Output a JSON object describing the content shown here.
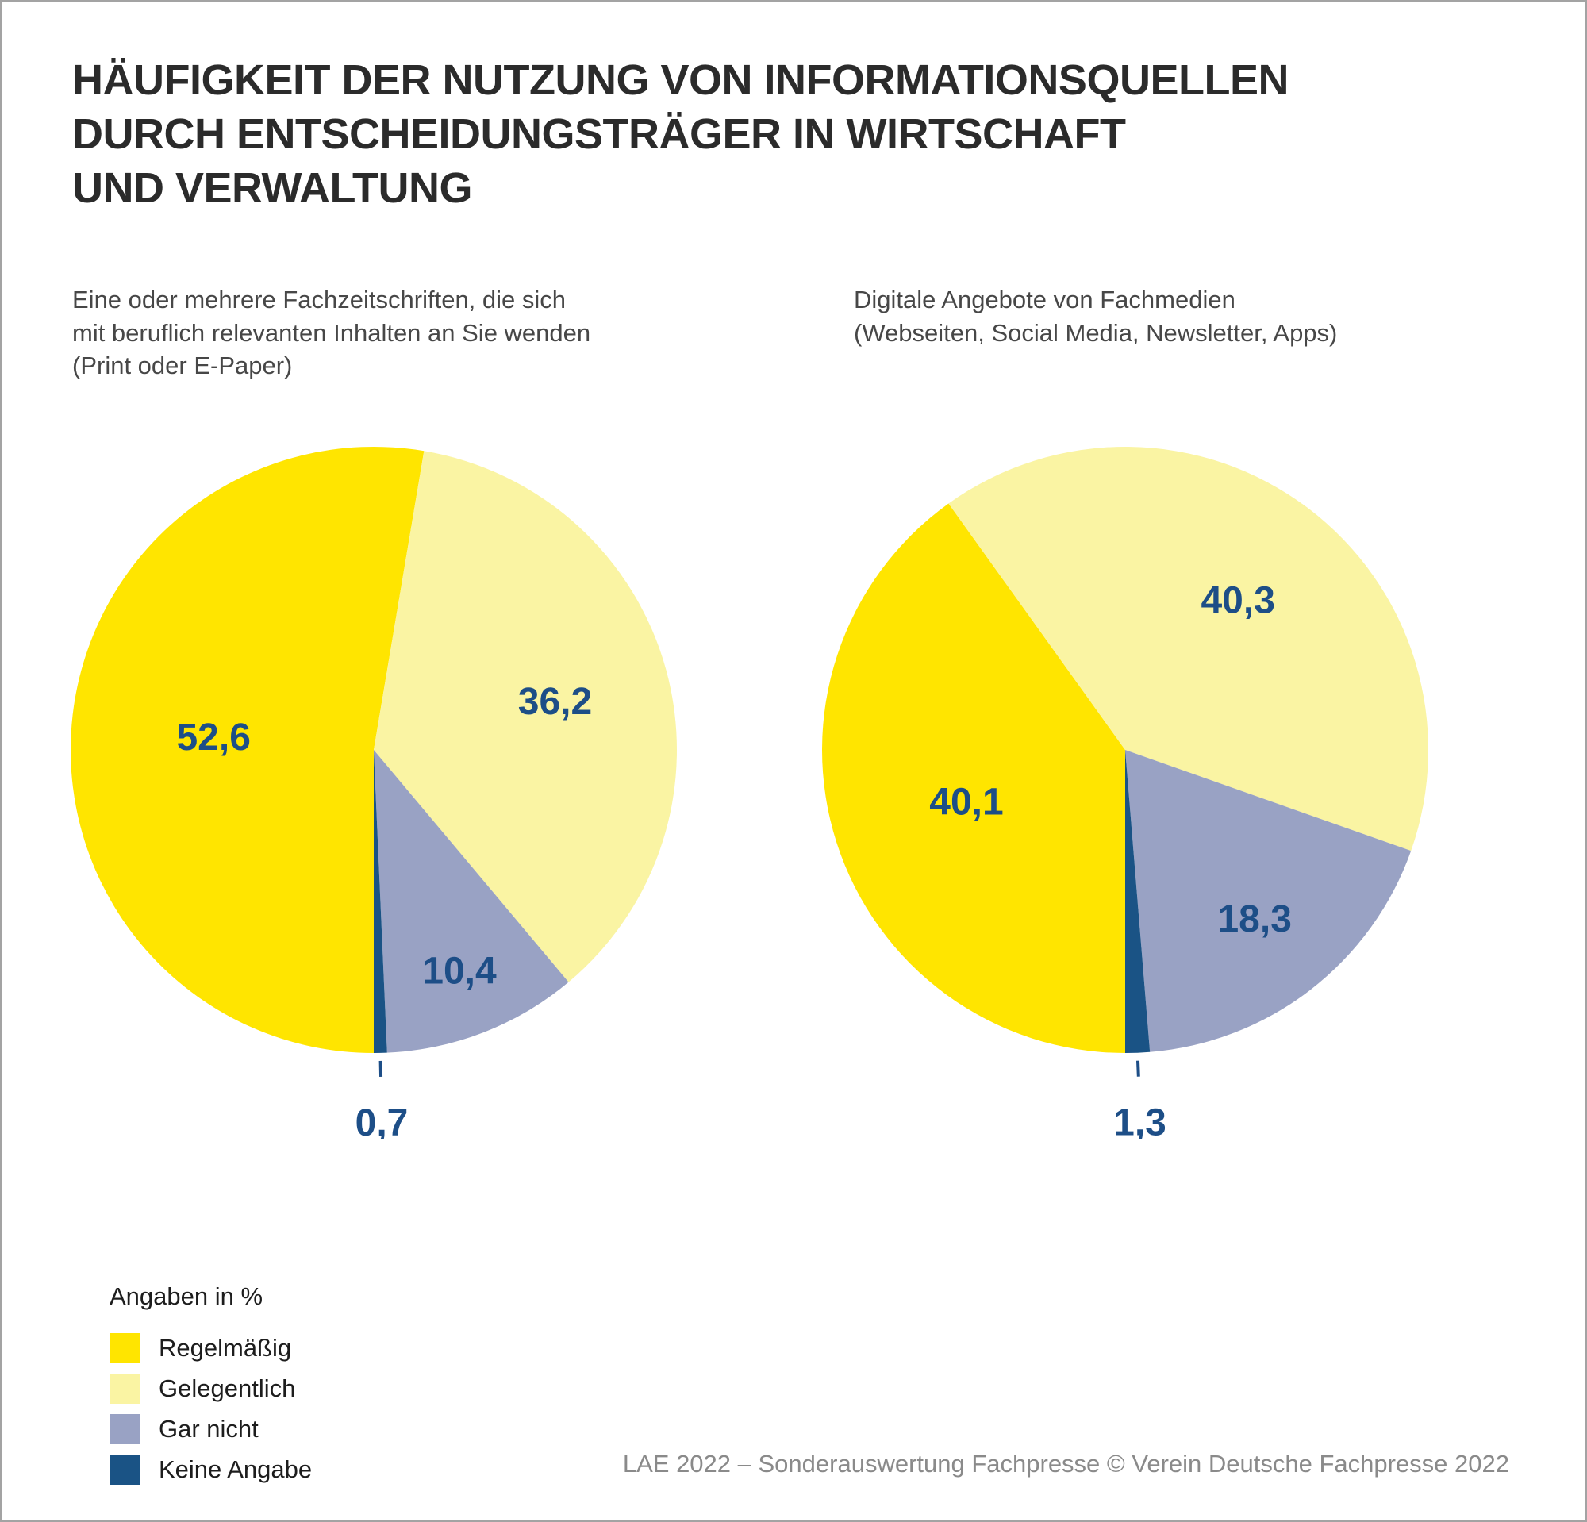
{
  "page": {
    "title_lines": [
      "HÄUFIGKEIT DER NUTZUNG VON INFORMATIONSQUELLEN",
      "DURCH ENTSCHEIDUNGSTRÄGER IN WIRTSCHAFT",
      "UND VERWALTUNG"
    ],
    "footer": "LAE 2022 – Sonderauswertung Fachpresse © Verein Deutsche Fachpresse 2022"
  },
  "chart_style": {
    "value_label_color": "#1d4e87"
  },
  "legend": {
    "heading": "Angaben in %",
    "items": [
      {
        "label": "Regelmäßig",
        "color": "#ffe500"
      },
      {
        "label": "Gelegentlich",
        "color": "#faf4a3"
      },
      {
        "label": "Gar nicht",
        "color": "#99a2c4"
      },
      {
        "label": "Keine Angabe",
        "color": "#1a5385"
      }
    ]
  },
  "chart_data": [
    {
      "type": "pie",
      "title": "Eine oder mehrere Fachzeitschriften, die sich mit beruflich relevanten Inhalten an Sie wenden (Print oder E-Paper)",
      "title_lines": [
        "Eine oder mehrere Fachzeitschriften, die sich",
        "mit beruflich relevanten Inhalten an Sie wenden",
        "(Print oder E-Paper)"
      ],
      "categories": [
        "Regelmäßig",
        "Gelegentlich",
        "Gar nicht",
        "Keine Angabe"
      ],
      "values": [
        52.6,
        36.2,
        10.4,
        0.7
      ],
      "labels": [
        "52,6",
        "36,2",
        "10,4",
        "0,7"
      ],
      "colors": [
        "#ffe500",
        "#faf4a3",
        "#99a2c4",
        "#1a5385"
      ],
      "unit": "%",
      "start_angle_deg": 180,
      "direction": "clockwise",
      "label_radius": [
        0.53,
        0.62,
        0.78,
        1.2
      ]
    },
    {
      "type": "pie",
      "title": "Digitale Angebote von Fachmedien (Webseiten, Social Media, Newsletter, Apps)",
      "title_lines": [
        "Digitale Angebote von Fachmedien",
        "(Webseiten, Social Media, Newsletter, Apps)"
      ],
      "categories": [
        "Regelmäßig",
        "Gelegentlich",
        "Gar nicht",
        "Keine Angabe"
      ],
      "values": [
        40.1,
        40.3,
        18.3,
        1.3
      ],
      "labels": [
        "40,1",
        "40,3",
        "18,3",
        "1,3"
      ],
      "colors": [
        "#ffe500",
        "#faf4a3",
        "#99a2c4",
        "#1a5385"
      ],
      "unit": "%",
      "start_angle_deg": 180,
      "direction": "clockwise",
      "label_radius": [
        0.55,
        0.62,
        0.7,
        1.2
      ]
    }
  ]
}
